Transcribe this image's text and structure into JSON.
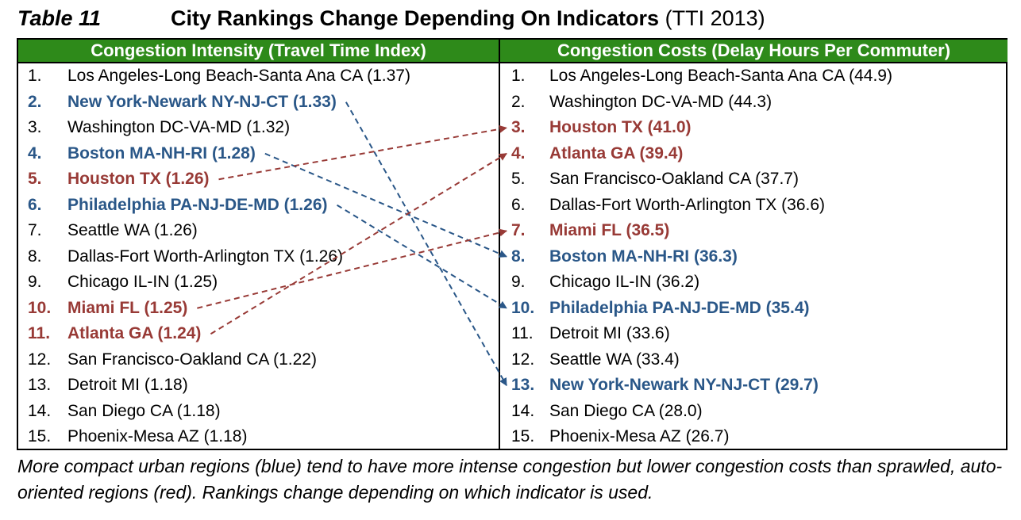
{
  "title": {
    "label": "Table 11",
    "heading": "City Rankings Change Depending On Indicators",
    "source": "(TTI 2013)"
  },
  "left": {
    "header": "Congestion Intensity (Travel Time Index)",
    "rows": [
      {
        "num": "1.",
        "name": "Los Angeles-Long Beach-Santa Ana CA (1.37)",
        "style": "plain"
      },
      {
        "num": "2.",
        "name": "New York-Newark NY-NJ-CT  (1.33)",
        "style": "blue"
      },
      {
        "num": "3.",
        "name": "Washington DC-VA-MD (1.32)",
        "style": "plain"
      },
      {
        "num": "4.",
        "name": "Boston MA-NH-RI (1.28)",
        "style": "blue"
      },
      {
        "num": "5.",
        "name": "Houston TX (1.26)",
        "style": "red"
      },
      {
        "num": "6.",
        "name": "Philadelphia PA-NJ-DE-MD (1.26)",
        "style": "blue"
      },
      {
        "num": "7.",
        "name": "Seattle WA (1.26)",
        "style": "plain"
      },
      {
        "num": "8.",
        "name": "Dallas-Fort Worth-Arlington TX (1.26)",
        "style": "plain"
      },
      {
        "num": "9.",
        "name": "Chicago IL-IN (1.25)",
        "style": "plain"
      },
      {
        "num": "10.",
        "name": "Miami FL (1.25)",
        "style": "red"
      },
      {
        "num": "11.",
        "name": "Atlanta GA (1.24)",
        "style": "red"
      },
      {
        "num": "12.",
        "name": "San Francisco-Oakland CA (1.22)",
        "style": "plain"
      },
      {
        "num": "13.",
        "name": "Detroit MI (1.18)",
        "style": "plain"
      },
      {
        "num": "14.",
        "name": "San Diego CA (1.18)",
        "style": "plain"
      },
      {
        "num": "15.",
        "name": "Phoenix-Mesa AZ (1.18)",
        "style": "plain"
      }
    ]
  },
  "right": {
    "header": "Congestion Costs (Delay Hours Per Commuter)",
    "rows": [
      {
        "num": "1.",
        "name": "Los Angeles-Long Beach-Santa Ana CA (44.9)",
        "style": "plain"
      },
      {
        "num": "2.",
        "name": "Washington DC-VA-MD (44.3)",
        "style": "plain"
      },
      {
        "num": "3.",
        "name": "Houston TX (41.0)",
        "style": "red"
      },
      {
        "num": "4.",
        "name": "Atlanta GA (39.4)",
        "style": "red"
      },
      {
        "num": "5.",
        "name": "San Francisco-Oakland CA (37.7)",
        "style": "plain"
      },
      {
        "num": "6.",
        "name": "Dallas-Fort Worth-Arlington TX (36.6)",
        "style": "plain"
      },
      {
        "num": "7.",
        "name": "Miami FL (36.5)",
        "style": "red"
      },
      {
        "num": "8.",
        "name": "Boston MA-NH-RI (36.3)",
        "style": "blue"
      },
      {
        "num": "9.",
        "name": "Chicago IL-IN (36.2)",
        "style": "plain"
      },
      {
        "num": "10.",
        "name": "Philadelphia PA-NJ-DE-MD (35.4)",
        "style": "blue"
      },
      {
        "num": "11.",
        "name": "Detroit MI (33.6)",
        "style": "plain"
      },
      {
        "num": "12.",
        "name": "Seattle WA (33.4)",
        "style": "plain"
      },
      {
        "num": "13.",
        "name": "New York-Newark NY-NJ-CT (29.7)",
        "style": "blue"
      },
      {
        "num": "14.",
        "name": "San Diego CA (28.0)",
        "style": "plain"
      },
      {
        "num": "15.",
        "name": "Phoenix-Mesa AZ (26.7)",
        "style": "plain"
      }
    ]
  },
  "arrows": [
    {
      "from_rank": 2,
      "to_rank": 13,
      "color": "#2a5788"
    },
    {
      "from_rank": 4,
      "to_rank": 8,
      "color": "#2a5788"
    },
    {
      "from_rank": 6,
      "to_rank": 10,
      "color": "#2a5788"
    },
    {
      "from_rank": 5,
      "to_rank": 3,
      "color": "#983a36"
    },
    {
      "from_rank": 10,
      "to_rank": 7,
      "color": "#983a36"
    },
    {
      "from_rank": 11,
      "to_rank": 4,
      "color": "#983a36"
    }
  ],
  "caption": "More compact urban regions (blue) tend to have more intense congestion but lower congestion costs than sprawled, auto-oriented regions (red). Rankings change depending on which indicator is used."
}
